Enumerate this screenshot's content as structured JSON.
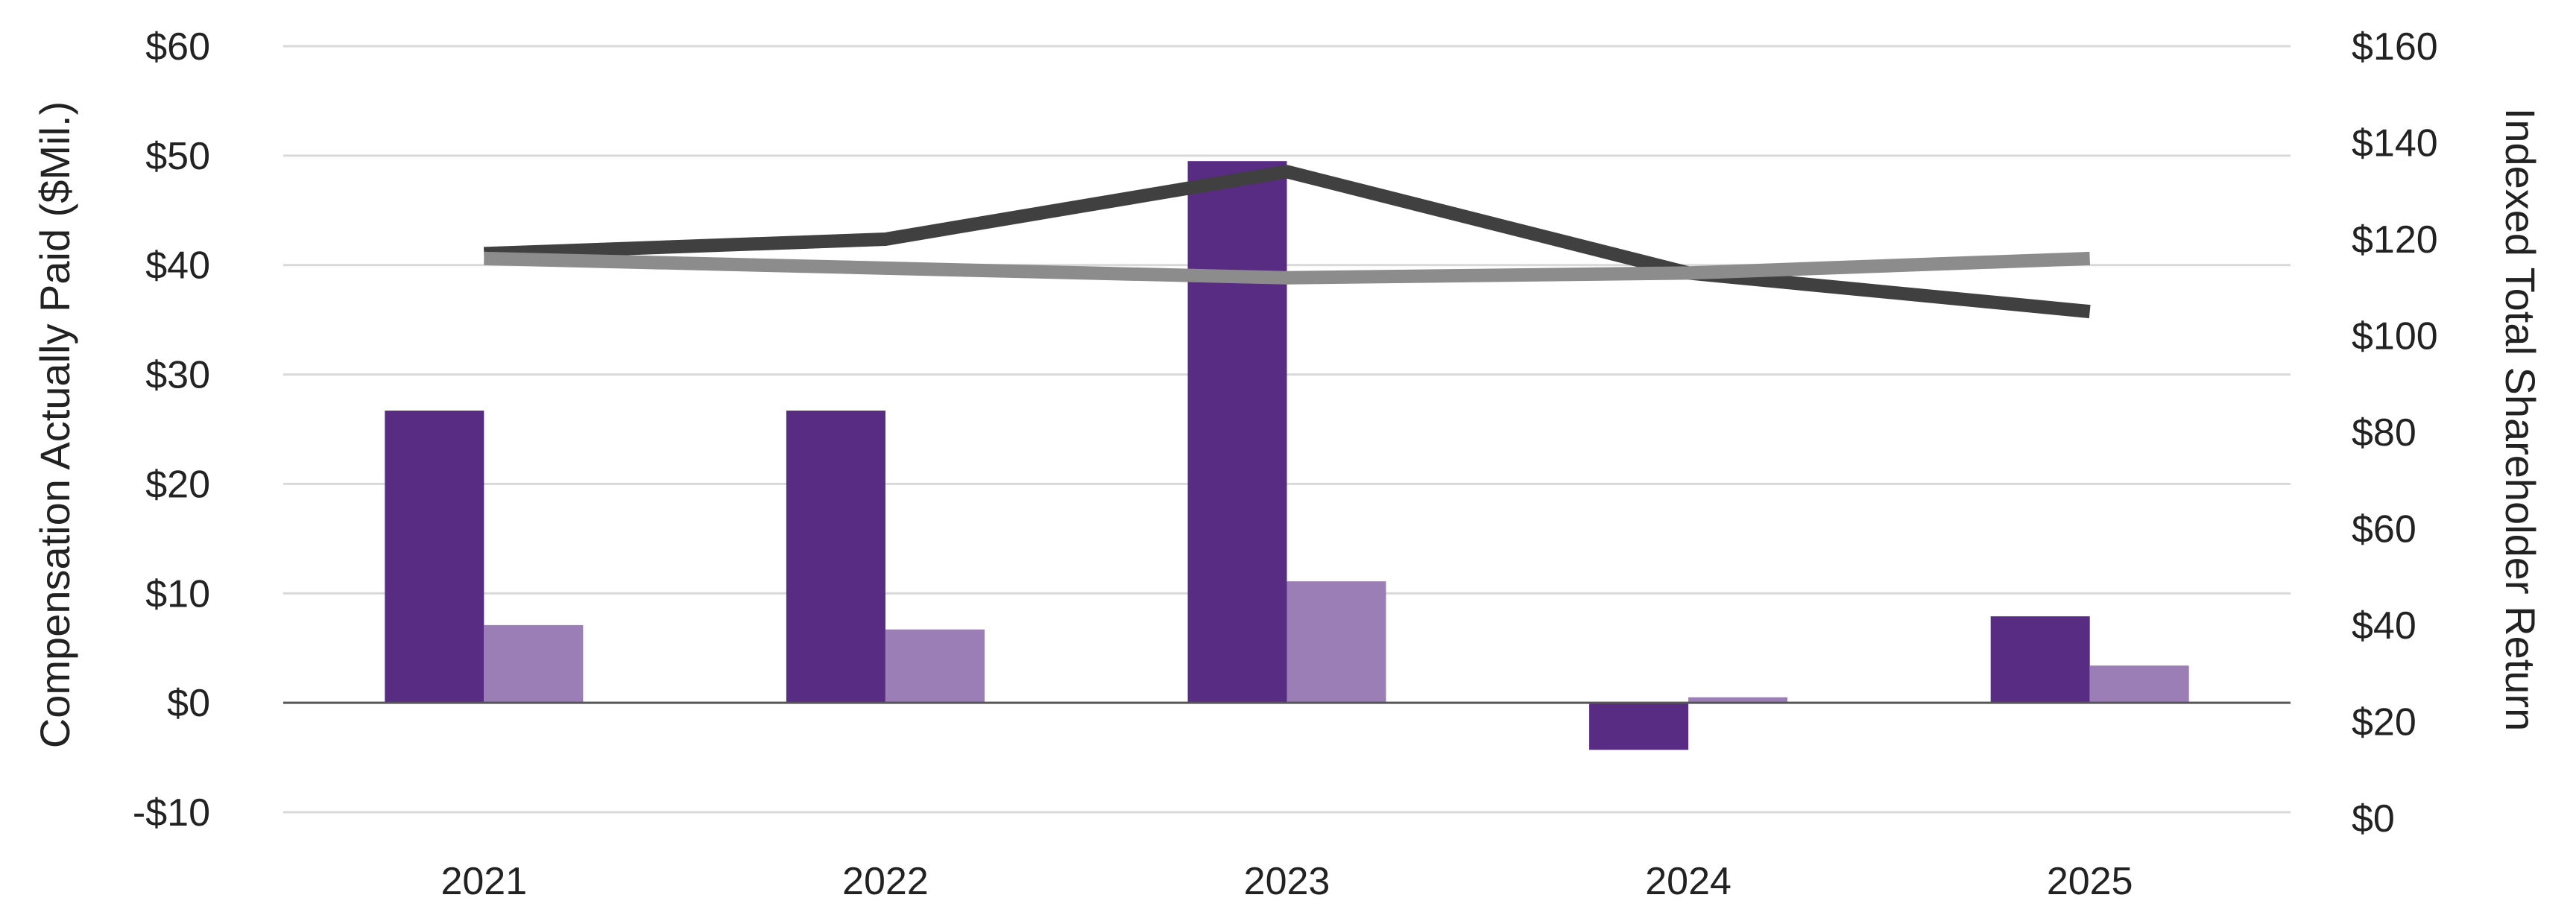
{
  "chart_data": {
    "type": "bar",
    "categories": [
      "2021",
      "2022",
      "2023",
      "2024",
      "2025"
    ],
    "ylabel": "Compensation Actually Paid ($Mil.)",
    "y2label": "Indexed Total Shareholder Return",
    "ylim": [
      -10,
      60
    ],
    "y2lim": [
      0,
      160
    ],
    "yticks": [
      {
        "value": 60,
        "label": "$60"
      },
      {
        "value": 50,
        "label": "$50"
      },
      {
        "value": 40,
        "label": "$40"
      },
      {
        "value": 30,
        "label": "$30"
      },
      {
        "value": 20,
        "label": "$20"
      },
      {
        "value": 10,
        "label": "$10"
      },
      {
        "value": 0,
        "label": "$0"
      },
      {
        "value": -10,
        "label": "-$10"
      }
    ],
    "y2ticks": [
      {
        "value": 160,
        "label": "$160"
      },
      {
        "value": 140,
        "label": "$140"
      },
      {
        "value": 120,
        "label": "$120"
      },
      {
        "value": 100,
        "label": "$100"
      },
      {
        "value": 80,
        "label": "$80"
      },
      {
        "value": 60,
        "label": "$60"
      },
      {
        "value": 40,
        "label": "$40"
      },
      {
        "value": 20,
        "label": "$20"
      },
      {
        "value": 0,
        "label": "$0"
      }
    ],
    "grid": true,
    "bar_series": [
      {
        "values": [
          26.7,
          26.7,
          49.5,
          -4.3,
          7.9
        ],
        "color": "#582c83",
        "axis": "left"
      },
      {
        "values": [
          7.1,
          6.7,
          11.1,
          0.5,
          3.4
        ],
        "color": "#9b7eb5",
        "axis": "left"
      }
    ],
    "line_series": [
      {
        "values": [
          117,
          120,
          134,
          113,
          105
        ],
        "color": "#404040",
        "axis": "right"
      },
      {
        "values": [
          116,
          114,
          112,
          113,
          116
        ],
        "color": "#8c8c8c",
        "axis": "right"
      }
    ]
  }
}
